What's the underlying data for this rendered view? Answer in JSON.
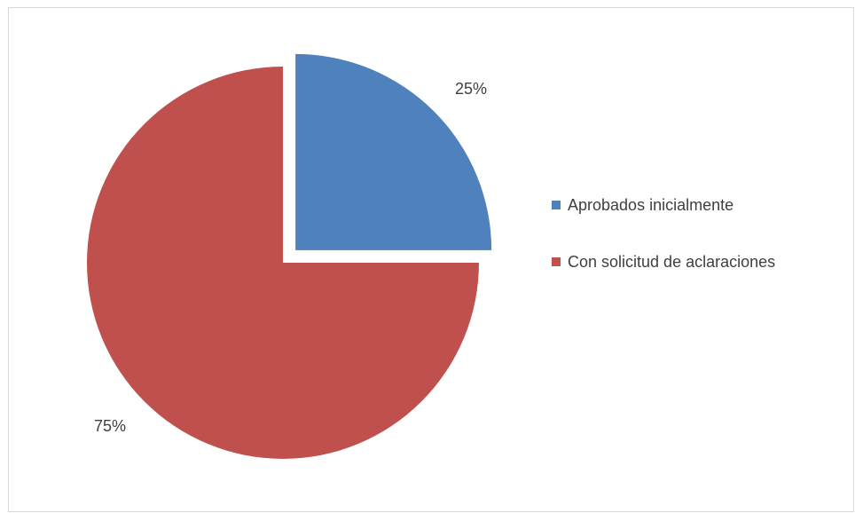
{
  "chart_data": {
    "type": "pie",
    "series": [
      {
        "name": "Aprobados inicialmente",
        "value": 25,
        "label": "25%",
        "color": "#4F81BD"
      },
      {
        "name": "Con solicitud de aclaraciones",
        "value": 75,
        "label": "75%",
        "color": "#C0504D"
      }
    ],
    "legend_position": "right"
  }
}
